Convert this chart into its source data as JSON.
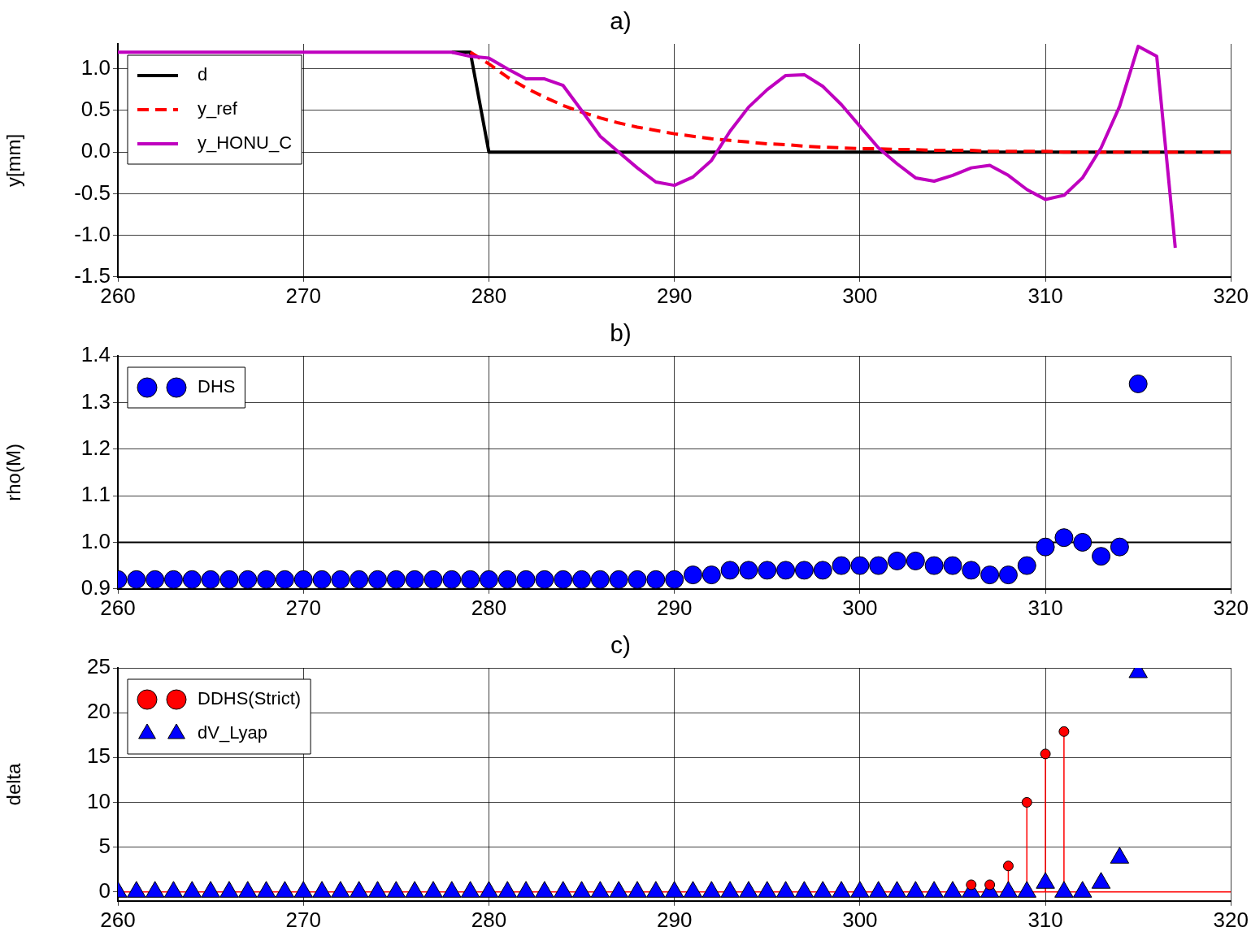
{
  "chart_data": [
    {
      "type": "line",
      "title": "a)",
      "ylabel": "y[mm]",
      "x": [
        260,
        261,
        262,
        263,
        264,
        265,
        266,
        267,
        268,
        269,
        270,
        271,
        272,
        273,
        274,
        275,
        276,
        277,
        278,
        279,
        280,
        281,
        282,
        283,
        284,
        285,
        286,
        287,
        288,
        289,
        290,
        291,
        292,
        293,
        294,
        295,
        296,
        297,
        298,
        299,
        300,
        301,
        302,
        303,
        304,
        305,
        306,
        307,
        308,
        309,
        310,
        311,
        312,
        313,
        314,
        315,
        316,
        317,
        318,
        319,
        320
      ],
      "series": [
        {
          "name": "d",
          "color": "#000000",
          "line_style": "solid",
          "values": [
            null,
            null,
            null,
            null,
            null,
            null,
            null,
            null,
            null,
            null,
            null,
            null,
            null,
            null,
            null,
            null,
            null,
            null,
            1.2,
            1.2,
            0,
            0,
            0,
            0,
            0,
            0,
            0,
            0,
            0,
            0,
            0,
            0,
            0,
            0,
            0,
            0,
            0,
            0,
            0,
            0,
            0,
            0,
            0,
            0,
            0,
            0,
            0,
            0,
            0,
            0,
            0,
            0,
            0,
            0,
            0,
            0,
            0,
            0,
            0,
            0,
            0
          ]
        },
        {
          "name": "y_ref",
          "color": "#ff0000",
          "line_style": "dashed",
          "values": [
            null,
            null,
            null,
            null,
            null,
            null,
            null,
            null,
            null,
            null,
            null,
            null,
            null,
            null,
            null,
            null,
            null,
            null,
            null,
            1.2,
            1.06,
            0.9,
            0.77,
            0.66,
            0.56,
            0.48,
            0.41,
            0.35,
            0.3,
            0.26,
            0.22,
            0.19,
            0.16,
            0.14,
            0.12,
            0.1,
            0.09,
            0.07,
            0.06,
            0.05,
            0.04,
            0.04,
            0.03,
            0.03,
            0.02,
            0.02,
            0.02,
            0.01,
            0.01,
            0.01,
            0.01,
            0,
            0,
            0,
            0,
            0,
            0,
            0,
            0,
            0,
            0
          ]
        },
        {
          "name": "y_HONU_C",
          "color": "#bf00bf",
          "line_style": "solid",
          "values": [
            1.2,
            1.2,
            1.2,
            1.2,
            1.2,
            1.2,
            1.2,
            1.2,
            1.2,
            1.2,
            1.2,
            1.2,
            1.2,
            1.2,
            1.2,
            1.2,
            1.2,
            1.2,
            1.2,
            1.15,
            1.13,
            1.0,
            0.88,
            0.88,
            0.8,
            0.5,
            0.19,
            0.0,
            -0.19,
            -0.36,
            -0.4,
            -0.3,
            -0.1,
            0.25,
            0.54,
            0.75,
            0.92,
            0.93,
            0.79,
            0.57,
            0.31,
            0.05,
            -0.14,
            -0.31,
            -0.35,
            -0.28,
            -0.19,
            -0.16,
            -0.28,
            -0.45,
            -0.57,
            -0.52,
            -0.31,
            0.05,
            0.55,
            1.27,
            1.15,
            -1.15,
            null,
            null,
            null
          ]
        }
      ],
      "xlim": [
        260,
        320
      ],
      "xticks": [
        260,
        270,
        280,
        290,
        300,
        310,
        320
      ],
      "ylim": [
        -1.5,
        1.3
      ],
      "yticks": [
        -1.5,
        {
          "value": -1,
          "label": "-1.0"
        },
        -0.5,
        {
          "value": 0,
          "label": "0.0"
        },
        0.5,
        {
          "value": 1,
          "label": "1.0"
        }
      ],
      "grid": true,
      "legend": "top left",
      "marker": "none"
    },
    {
      "type": "scatter",
      "title": "b)",
      "ylabel": "rho(M)",
      "x": [
        260,
        261,
        262,
        263,
        264,
        265,
        266,
        267,
        268,
        269,
        270,
        271,
        272,
        273,
        274,
        275,
        276,
        277,
        278,
        279,
        280,
        281,
        282,
        283,
        284,
        285,
        286,
        287,
        288,
        289,
        290,
        291,
        292,
        293,
        294,
        295,
        296,
        297,
        298,
        299,
        300,
        301,
        302,
        303,
        304,
        305,
        306,
        307,
        308,
        309,
        310,
        311,
        312,
        313,
        314,
        315
      ],
      "series": [
        {
          "name": "DHS",
          "color": "#0000ff",
          "marker": "circle",
          "values": [
            0.92,
            0.92,
            0.92,
            0.92,
            0.92,
            0.92,
            0.92,
            0.92,
            0.92,
            0.92,
            0.92,
            0.92,
            0.92,
            0.92,
            0.92,
            0.92,
            0.92,
            0.92,
            0.92,
            0.92,
            0.92,
            0.92,
            0.92,
            0.92,
            0.92,
            0.92,
            0.92,
            0.92,
            0.92,
            0.92,
            0.92,
            0.93,
            0.93,
            0.94,
            0.94,
            0.94,
            0.94,
            0.94,
            0.94,
            0.95,
            0.95,
            0.95,
            0.96,
            0.96,
            0.95,
            0.95,
            0.94,
            0.93,
            0.93,
            0.95,
            0.99,
            1.01,
            1.0,
            0.97,
            0.99,
            1.34
          ]
        }
      ],
      "xlim": [
        260,
        320
      ],
      "xticks": [
        260,
        270,
        280,
        290,
        300,
        310,
        320
      ],
      "ylim": [
        0.9,
        1.4
      ],
      "yticks": [
        0.9,
        {
          "value": 1,
          "label": "1.0"
        },
        1.1,
        1.2,
        1.3,
        1.4
      ],
      "ref_lines": [
        {
          "axis": "y",
          "value": 1,
          "color": "#000000"
        }
      ],
      "grid": true,
      "legend": "top left"
    },
    {
      "type": "lollipop",
      "title": "c)",
      "ylabel": "delta",
      "x": [
        260,
        261,
        262,
        263,
        264,
        265,
        266,
        267,
        268,
        269,
        270,
        271,
        272,
        273,
        274,
        275,
        276,
        277,
        278,
        279,
        280,
        281,
        282,
        283,
        284,
        285,
        286,
        287,
        288,
        289,
        290,
        291,
        292,
        293,
        294,
        295,
        296,
        297,
        298,
        299,
        300,
        301,
        302,
        303,
        304,
        305,
        306,
        307,
        308,
        309,
        310,
        311,
        312,
        313,
        314,
        315
      ],
      "series": [
        {
          "name": "DDHS(Strict)",
          "color": "#ff0000",
          "marker": "circle",
          "values": [
            null,
            null,
            null,
            null,
            null,
            null,
            null,
            null,
            null,
            null,
            null,
            null,
            null,
            null,
            null,
            null,
            null,
            null,
            null,
            null,
            null,
            null,
            null,
            null,
            null,
            null,
            null,
            null,
            null,
            null,
            null,
            null,
            null,
            null,
            null,
            null,
            null,
            null,
            null,
            null,
            null,
            null,
            null,
            null,
            null,
            null,
            0.8,
            0.8,
            2.9,
            10,
            15.4,
            17.9,
            null,
            null,
            null,
            null
          ]
        },
        {
          "name": "dV_Lyap",
          "type": "scatter",
          "color": "#0000ff",
          "marker": "triangle",
          "values": [
            0,
            0,
            0,
            0,
            0,
            0,
            0,
            0,
            0,
            0,
            0,
            0,
            0,
            0,
            0,
            0,
            0,
            0,
            0,
            0,
            0,
            0,
            0,
            0,
            0,
            0,
            0,
            0,
            0,
            0,
            0,
            0,
            0,
            0,
            0,
            0,
            0,
            0,
            0,
            0,
            0,
            0,
            0,
            0,
            0,
            0,
            0,
            0,
            0,
            0,
            1,
            0,
            0,
            1,
            3.8,
            24.5
          ]
        }
      ],
      "ref_lines": [
        {
          "axis": "y",
          "value": 0,
          "color": "#ff0000"
        }
      ],
      "xlim": [
        260,
        320
      ],
      "xticks": [
        260,
        270,
        280,
        290,
        300,
        310,
        320
      ],
      "ylim": [
        -1,
        25
      ],
      "yticks": [
        0,
        5,
        10,
        15,
        20,
        25
      ],
      "grid": true,
      "legend": "top left"
    }
  ]
}
